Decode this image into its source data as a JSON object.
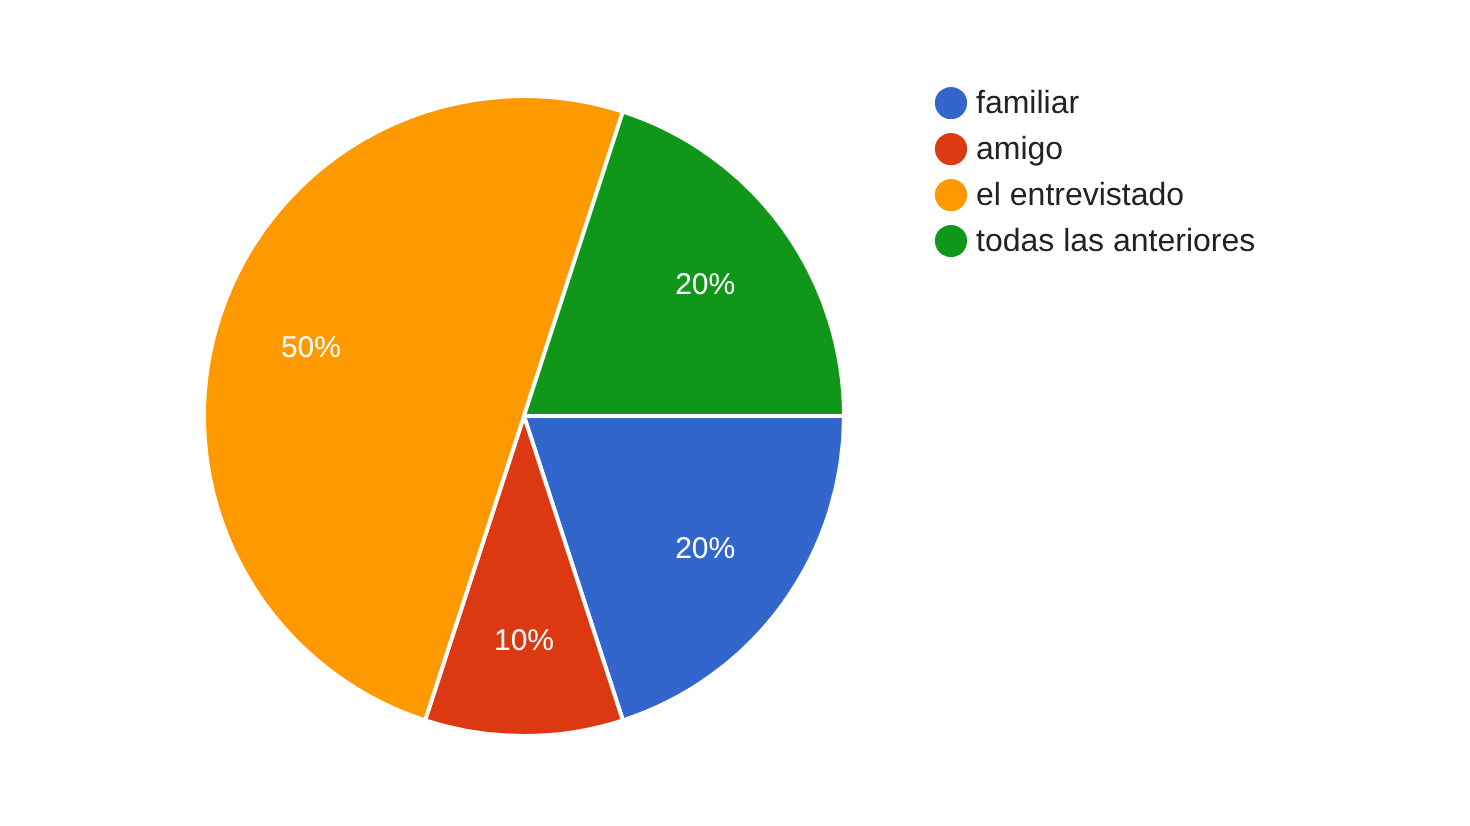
{
  "chart_data": {
    "type": "pie",
    "categories": [
      "familiar",
      "amigo",
      "el entrevistado",
      "todas las anteriores"
    ],
    "values": [
      20,
      10,
      50,
      20
    ],
    "colors": [
      "#3366cc",
      "#dc3912",
      "#ff9900",
      "#109618"
    ],
    "value_labels": [
      "20%",
      "10%",
      "50%",
      "20%"
    ],
    "legend": "top right"
  }
}
